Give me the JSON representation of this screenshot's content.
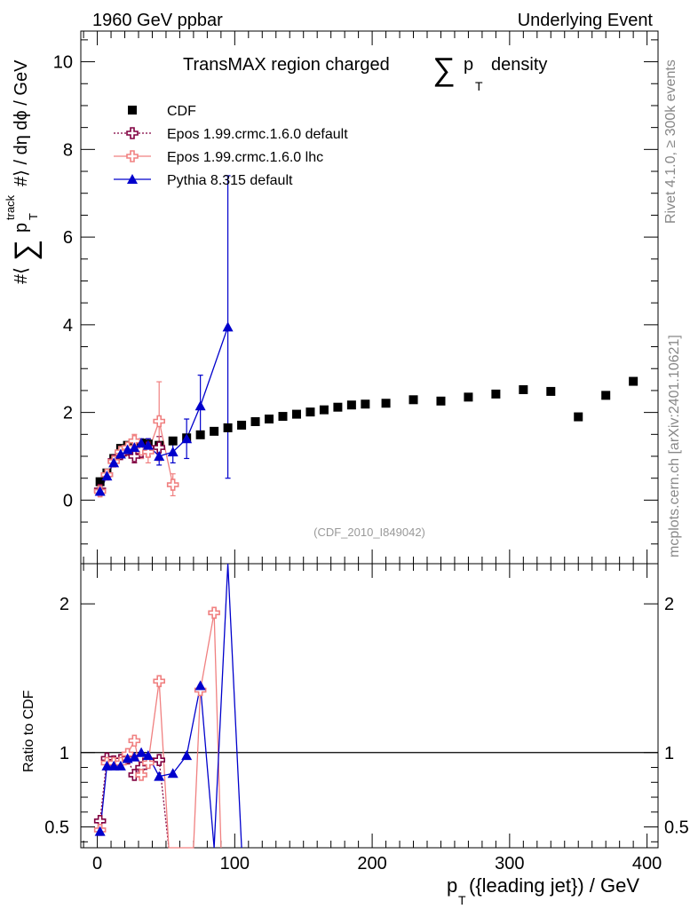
{
  "header": {
    "left": "1960 GeV ppbar",
    "right": "Underlying Event",
    "title": "TransMAX region charged",
    "title_sum": "∑",
    "title_p": "p",
    "title_sub": "T",
    "title_tail": "density",
    "watermark": "(CDF_2010_I849042)",
    "side_top": "Rivet 4.1.0, ≥ 300k events",
    "side_bottom": "mcplots.cern.ch [arXiv:2401.10621]"
  },
  "axes": {
    "ylabel_main_pre": "#⟨",
    "ylabel_main_sum": "∑",
    "ylabel_main_p": "p",
    "ylabel_main_sup": "track",
    "ylabel_main_sub": "T",
    "ylabel_main_post": "#⟩ / dη dϕ / GeV",
    "ylabel_ratio": "Ratio to CDF",
    "xlabel_p": "p",
    "xlabel_sub": "T",
    "xlabel_post": "({leading jet}) / GeV"
  },
  "chart_data": [
    {
      "type": "scatter",
      "panel": "main",
      "xlim": [
        -12,
        408
      ],
      "ylim": [
        -1.45,
        10.7
      ],
      "xticks": [
        "0",
        "100",
        "200",
        "300",
        "400"
      ],
      "yticks": [
        "0",
        "2",
        "4",
        "6",
        "8",
        "10"
      ],
      "legend": [
        "CDF",
        "Epos 1.99.crmc.1.6.0 default",
        "Epos 1.99.crmc.1.6.0 lhc",
        "Pythia 8.315 default"
      ],
      "series": [
        {
          "name": "CDF",
          "color": "#000000",
          "x": [
            2,
            7,
            12,
            17,
            22,
            27,
            32,
            37,
            45,
            55,
            65,
            75,
            85,
            95,
            105,
            115,
            125,
            135,
            145,
            155,
            165,
            175,
            185,
            195,
            210,
            230,
            250,
            270,
            290,
            310,
            330,
            350,
            370,
            390
          ],
          "y": [
            0.42,
            0.62,
            0.95,
            1.18,
            1.25,
            1.28,
            1.3,
            1.28,
            1.25,
            1.35,
            1.42,
            1.49,
            1.57,
            1.65,
            1.71,
            1.79,
            1.85,
            1.91,
            1.96,
            2.01,
            2.06,
            2.12,
            2.17,
            2.19,
            2.21,
            2.29,
            2.26,
            2.35,
            2.42,
            2.52,
            2.48,
            1.9,
            2.39,
            2.71
          ]
        },
        {
          "name": "Epos 1.99.crmc.1.6.0 default",
          "color": "#800040",
          "x": [
            2,
            7,
            12,
            17,
            22,
            27,
            32,
            37,
            45
          ],
          "y": [
            0.23,
            0.58,
            0.9,
            1.05,
            1.15,
            1.0,
            1.1,
            1.2,
            1.2
          ],
          "err": [
            0.05,
            0.05,
            0.05,
            0.08,
            0.1,
            0.15,
            0.15,
            0.2,
            0.25
          ]
        },
        {
          "name": "Epos 1.99.crmc.1.6.0 lhc",
          "color": "#f08080",
          "x": [
            2,
            7,
            12,
            17,
            22,
            27,
            32,
            37,
            45,
            55
          ],
          "y": [
            0.2,
            0.58,
            0.88,
            1.1,
            1.2,
            1.35,
            1.15,
            1.1,
            1.8,
            0.35
          ],
          "err": [
            0.05,
            0.05,
            0.05,
            0.08,
            0.1,
            0.15,
            0.2,
            0.25,
            0.9,
            0.25
          ]
        },
        {
          "name": "Pythia 8.315 default",
          "color": "#0000cc",
          "x": [
            2,
            7,
            12,
            17,
            22,
            27,
            32,
            37,
            45,
            55,
            65,
            75,
            95
          ],
          "y": [
            0.2,
            0.55,
            0.85,
            1.05,
            1.15,
            1.2,
            1.3,
            1.25,
            1.0,
            1.1,
            1.4,
            2.15,
            3.95
          ],
          "err": [
            0.05,
            0.05,
            0.05,
            0.05,
            0.08,
            0.1,
            0.1,
            0.15,
            0.2,
            0.25,
            0.45,
            0.7,
            3.45
          ]
        }
      ]
    },
    {
      "type": "line",
      "panel": "ratio",
      "xlim": [
        -12,
        408
      ],
      "ylim": [
        0.36,
        2.27
      ],
      "yticks": [
        "0.5",
        "1",
        "2"
      ],
      "reference": 1,
      "series": [
        {
          "name": "Epos 1.99.crmc.1.6.0 default",
          "color": "#800040",
          "x": [
            2,
            7,
            12,
            17,
            22,
            27,
            32,
            37,
            45,
            52
          ],
          "y": [
            0.54,
            0.96,
            0.94,
            0.95,
            0.96,
            0.85,
            0.9,
            0.95,
            0.95,
            0.3
          ]
        },
        {
          "name": "Epos 1.99.crmc.1.6.0 lhc",
          "color": "#f08080",
          "x": [
            2,
            7,
            12,
            17,
            22,
            27,
            32,
            37,
            45,
            52,
            70,
            75,
            85,
            90
          ],
          "y": [
            0.48,
            0.93,
            0.93,
            0.93,
            0.99,
            1.08,
            0.85,
            0.93,
            1.48,
            0.3,
            0.3,
            1.42,
            1.94,
            0.3
          ]
        },
        {
          "name": "Pythia 8.315 default",
          "color": "#0000cc",
          "x": [
            2,
            7,
            12,
            17,
            22,
            27,
            32,
            37,
            45,
            55,
            65,
            75,
            85,
            95,
            105
          ],
          "y": [
            0.47,
            0.91,
            0.91,
            0.91,
            0.96,
            0.97,
            1.0,
            0.98,
            0.84,
            0.86,
            0.98,
            1.45,
            0.3,
            2.3,
            0.3
          ]
        }
      ]
    }
  ]
}
